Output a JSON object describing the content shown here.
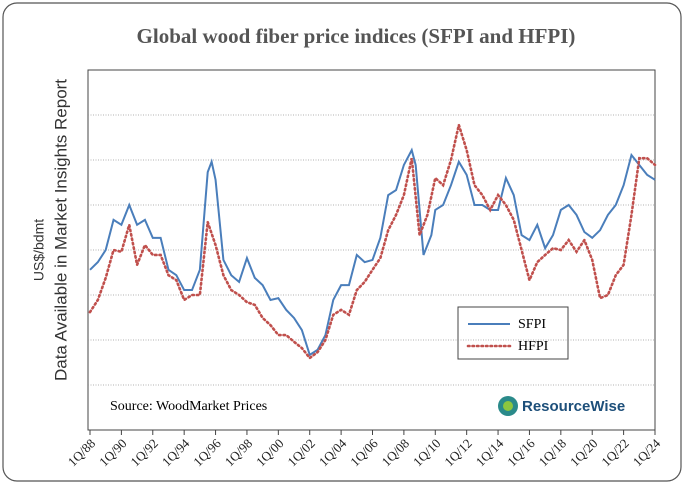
{
  "chart_data": {
    "type": "line",
    "title": "Global wood fiber price indices (SFPI and HFPI)",
    "ylabel": "US$/bdmt",
    "ylabel_note": "Data Available in Market Insights Report",
    "source": "Source: WoodMarket Prices",
    "logo": "ResourceWise",
    "xlim": [
      1988,
      2024
    ],
    "xticks": [
      {
        "value": 1988,
        "label": "1Q/88"
      },
      {
        "value": 1990,
        "label": "1Q/90"
      },
      {
        "value": 1992,
        "label": "1Q/92"
      },
      {
        "value": 1994,
        "label": "1Q/94"
      },
      {
        "value": 1996,
        "label": "1Q/96"
      },
      {
        "value": 1998,
        "label": "1Q/98"
      },
      {
        "value": 2000,
        "label": "1Q/00"
      },
      {
        "value": 2002,
        "label": "1Q/02"
      },
      {
        "value": 2004,
        "label": "1Q/04"
      },
      {
        "value": 2006,
        "label": "1Q/06"
      },
      {
        "value": 2008,
        "label": "1Q/08"
      },
      {
        "value": 2010,
        "label": "1Q/10"
      },
      {
        "value": 2012,
        "label": "1Q/12"
      },
      {
        "value": 2014,
        "label": "1Q/14"
      },
      {
        "value": 2016,
        "label": "1Q/16"
      },
      {
        "value": 2018,
        "label": "1Q/18"
      },
      {
        "value": 2020,
        "label": "1Q/20"
      },
      {
        "value": 2022,
        "label": "1Q/22"
      },
      {
        "value": 2024,
        "label": "1Q/24"
      }
    ],
    "ylim": [
      0,
      8
    ],
    "yticks": [
      1,
      2,
      3,
      4,
      5,
      6,
      7
    ],
    "grid": true,
    "legend": "lower-right",
    "series": [
      {
        "name": "SFPI",
        "color": "#4a7ebb",
        "style": "solid",
        "x": [
          1988,
          1988.5,
          1989,
          1989.5,
          1990,
          1990.5,
          1991,
          1991.5,
          1992,
          1992.5,
          1993,
          1993.5,
          1994,
          1994.5,
          1995,
          1995.5,
          1995.75,
          1996,
          1996.5,
          1997,
          1997.5,
          1998,
          1998.5,
          1999,
          1999.5,
          2000,
          2000.5,
          2001,
          2001.5,
          2002,
          2002.5,
          2003,
          2003.5,
          2004,
          2004.5,
          2005,
          2005.5,
          2006,
          2006.5,
          2007,
          2007.5,
          2008,
          2008.5,
          2008.75,
          2009,
          2009.25,
          2009.75,
          2010,
          2010.5,
          2011,
          2011.5,
          2012,
          2012.5,
          2013,
          2013.5,
          2014,
          2014.5,
          2015,
          2015.5,
          2016,
          2016.5,
          2017,
          2017.5,
          2018,
          2018.5,
          2019,
          2019.5,
          2020,
          2020.5,
          2021,
          2021.5,
          2022,
          2022.5,
          2023,
          2023.5,
          2024
        ],
        "values": [
          3.56,
          3.73,
          4.0,
          4.67,
          4.56,
          5.0,
          4.56,
          4.67,
          4.27,
          4.27,
          3.56,
          3.44,
          3.11,
          3.11,
          3.56,
          5.73,
          5.96,
          5.56,
          3.78,
          3.44,
          3.29,
          3.82,
          3.38,
          3.22,
          2.89,
          2.93,
          2.67,
          2.49,
          2.22,
          1.67,
          1.78,
          2.11,
          2.89,
          3.22,
          3.22,
          3.89,
          3.73,
          3.78,
          4.27,
          5.22,
          5.33,
          5.89,
          6.22,
          5.89,
          4.89,
          3.89,
          4.33,
          4.89,
          5.0,
          5.44,
          5.96,
          5.67,
          5.0,
          5.0,
          4.89,
          4.89,
          5.6,
          5.22,
          4.33,
          4.22,
          4.56,
          4.04,
          4.33,
          4.89,
          5.0,
          4.78,
          4.4,
          4.27,
          4.44,
          4.78,
          5.0,
          5.44,
          6.11,
          5.89,
          5.67,
          5.56
        ]
      },
      {
        "name": "HFPI",
        "color": "#c0504d",
        "style": "dotted",
        "x": [
          1988,
          1988.5,
          1989,
          1989.5,
          1990,
          1990.5,
          1991,
          1991.5,
          1992,
          1992.5,
          1993,
          1993.5,
          1994,
          1994.5,
          1995,
          1995.5,
          1996,
          1996.5,
          1997,
          1997.5,
          1998,
          1998.5,
          1999,
          1999.5,
          2000,
          2000.5,
          2001,
          2001.5,
          2002,
          2002.5,
          2003,
          2003.5,
          2004,
          2004.5,
          2005,
          2005.5,
          2006,
          2006.5,
          2007,
          2007.5,
          2008,
          2008.5,
          2009,
          2009.5,
          2010,
          2010.5,
          2011,
          2011.5,
          2012,
          2012.5,
          2013,
          2013.5,
          2014,
          2014.5,
          2015,
          2015.5,
          2016,
          2016.5,
          2017,
          2017.5,
          2018,
          2018.5,
          2019,
          2019.5,
          2020,
          2020.5,
          2021,
          2021.5,
          2022,
          2022.5,
          2023,
          2023.5,
          2024
        ],
        "values": [
          2.62,
          2.89,
          3.38,
          4.0,
          3.96,
          4.56,
          3.67,
          4.11,
          3.89,
          3.89,
          3.44,
          3.33,
          2.89,
          3.0,
          3.0,
          4.62,
          4.11,
          3.44,
          3.11,
          3.0,
          2.84,
          2.78,
          2.49,
          2.33,
          2.11,
          2.11,
          1.96,
          1.82,
          1.6,
          1.73,
          2.0,
          2.56,
          2.67,
          2.56,
          3.11,
          3.29,
          3.56,
          3.82,
          4.44,
          4.78,
          5.22,
          6.04,
          4.33,
          4.78,
          5.6,
          5.44,
          6.0,
          6.78,
          6.22,
          5.44,
          5.22,
          4.89,
          5.22,
          5.0,
          4.67,
          4.0,
          3.33,
          3.73,
          3.89,
          4.04,
          4.0,
          4.22,
          3.96,
          4.22,
          3.78,
          2.93,
          3.0,
          3.44,
          3.67,
          4.78,
          6.04,
          6.04,
          5.89
        ]
      }
    ]
  }
}
